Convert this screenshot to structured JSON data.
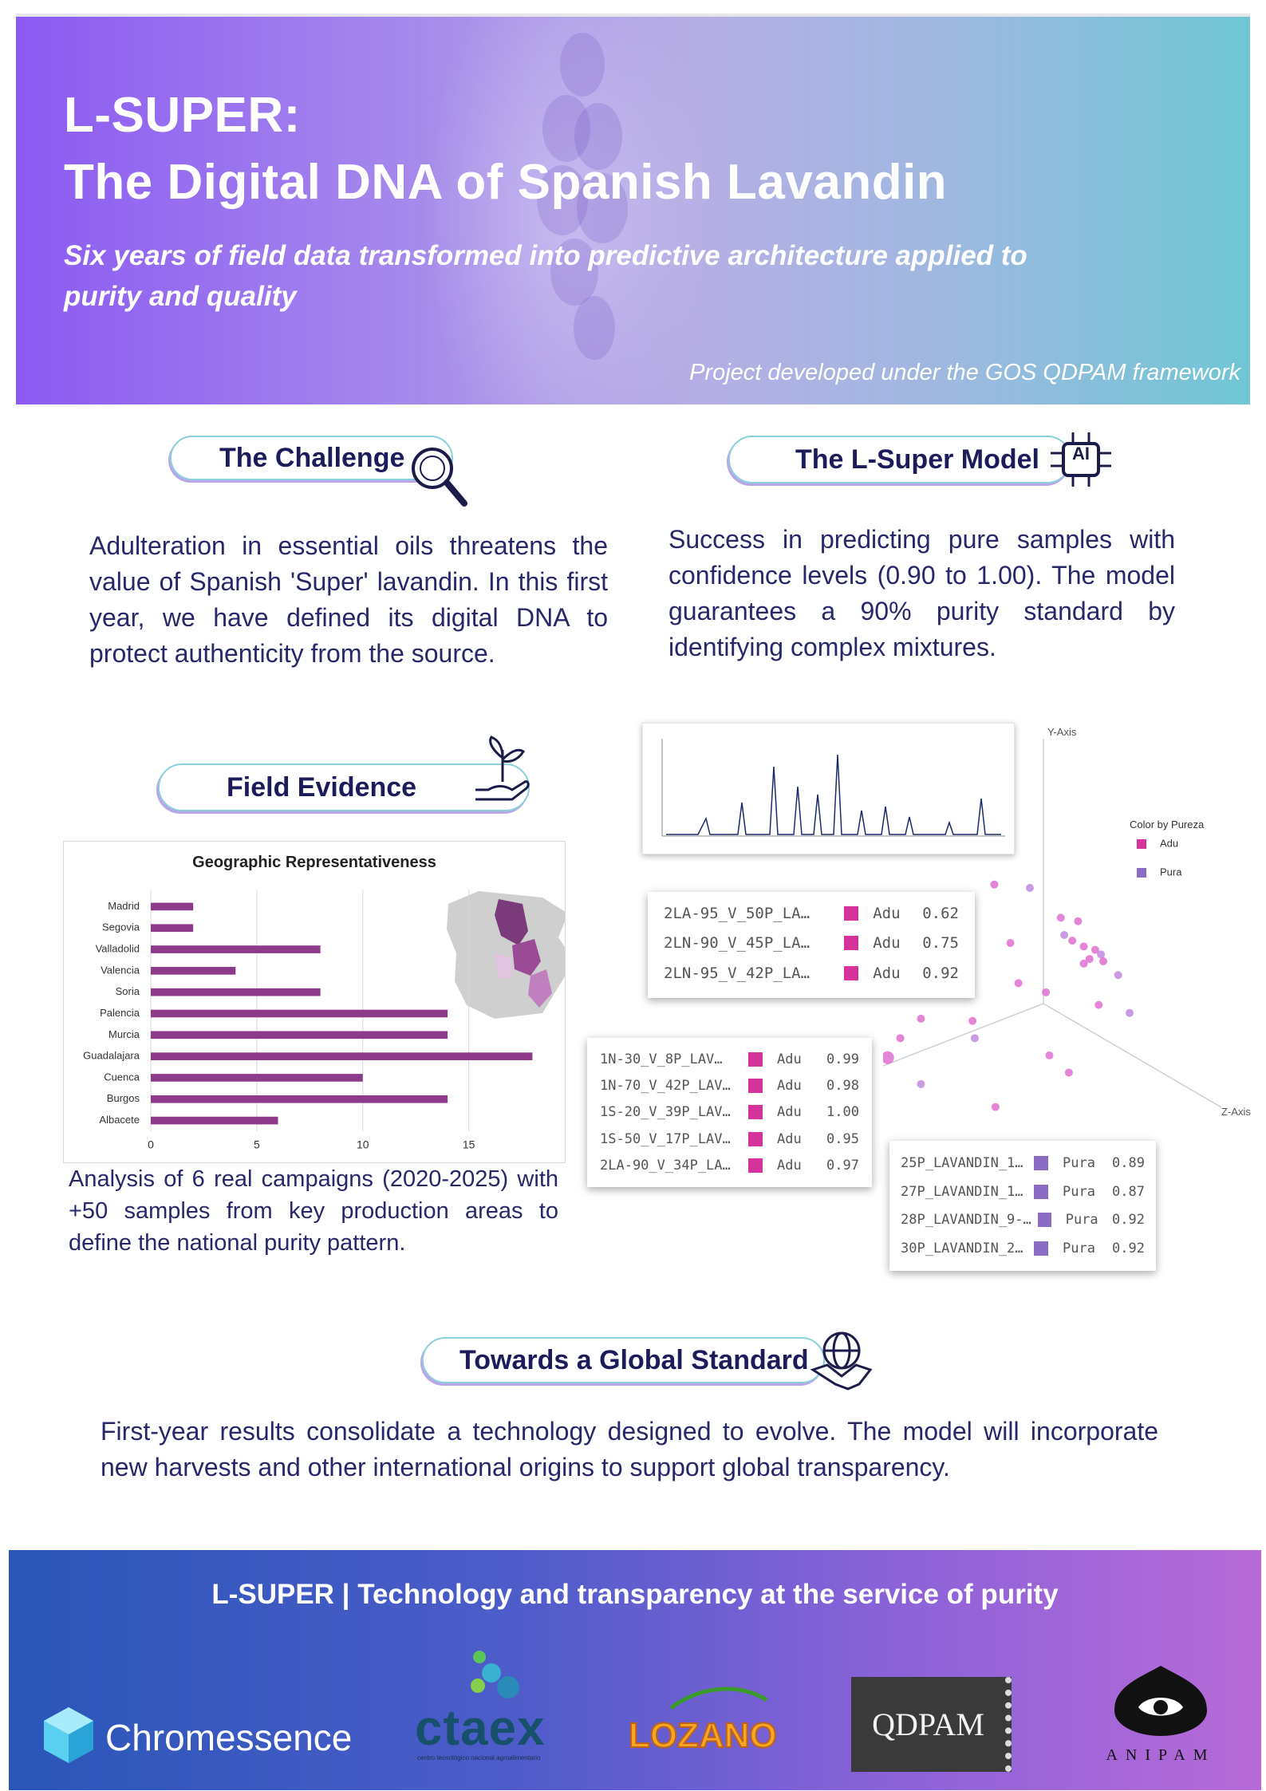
{
  "header": {
    "title_line1": "L-SUPER:",
    "title_line2": "The Digital DNA of Spanish Lavandin",
    "subtitle": "Six years of field data transformed into predictive architecture applied to purity and quality",
    "framework": "Project developed under the GOS QDPAM framework"
  },
  "challenge": {
    "heading": "The Challenge",
    "text": "Adulteration in essential oils threatens the value of Spanish 'Super' lavandin. In this first year, we have defined its digital DNA to protect authenticity from the source."
  },
  "model": {
    "heading": "The L-Super Model",
    "icon_label": "AI",
    "text": "Success in predicting pure samples with confidence levels (0.90 to 1.00). The model guarantees a 90% purity standard by identifying complex mixtures."
  },
  "field": {
    "heading": "Field Evidence",
    "text": "Analysis of 6 real campaigns (2020-2025) with +50 samples from key production areas to define the national purity pattern."
  },
  "chart_data": {
    "type": "bar",
    "orientation": "horizontal",
    "title": "Geographic Representativeness",
    "categories": [
      "Madrid",
      "Segovia",
      "Valladolid",
      "Valencia",
      "Soria",
      "Palencia",
      "Murcia",
      "Guadalajara",
      "Cuenca",
      "Burgos",
      "Albacete"
    ],
    "values": [
      2,
      2,
      8,
      4,
      8,
      14,
      14,
      18,
      10,
      14,
      6
    ],
    "color": "#8e3a8a",
    "xlim": [
      0,
      19
    ],
    "xticks": [
      0,
      5,
      10,
      15
    ],
    "grid": true
  },
  "prediction": {
    "axis_y": "Y-Axis",
    "axis_z": "Z-Axis",
    "legend_title": "Color by Pureza",
    "legend": [
      {
        "name": "Adu",
        "color": "#d6339a"
      },
      {
        "name": "Pura",
        "color": "#8a6cc4"
      }
    ],
    "tables": [
      {
        "rows": [
          [
            "2LA-95_V_50P_LA…",
            "Adu",
            "0.62"
          ],
          [
            "2LN-90_V_45P_LA…",
            "Adu",
            "0.75"
          ],
          [
            "2LN-95_V_42P_LA…",
            "Adu",
            "0.92"
          ]
        ]
      },
      {
        "rows": [
          [
            "1N-30_V_8P_LAV…",
            "Adu",
            "0.99"
          ],
          [
            "1N-70_V_42P_LAV…",
            "Adu",
            "0.98"
          ],
          [
            "1S-20_V_39P_LAV…",
            "Adu",
            "1.00"
          ],
          [
            "1S-50_V_17P_LAV…",
            "Adu",
            "0.95"
          ],
          [
            "2LA-90_V_34P_LA…",
            "Adu",
            "0.97"
          ]
        ]
      },
      {
        "rows": [
          [
            "25P_LAVANDIN_1…",
            "Pura",
            "0.89"
          ],
          [
            "27P_LAVANDIN_1…",
            "Pura",
            "0.87"
          ],
          [
            "28P_LAVANDIN_9-…",
            "Pura",
            "0.92"
          ],
          [
            "30P_LAVANDIN_2…",
            "Pura",
            "0.92"
          ]
        ]
      }
    ]
  },
  "standard": {
    "heading": "Towards a Global Standard",
    "text": "First-year results consolidate a technology designed to evolve. The model will incorporate new harvests and other international origins to support global transparency."
  },
  "footer": {
    "tagline": "L-SUPER | Technology and transparency at the service of purity",
    "logos": {
      "chromessence": "Chromessence",
      "ctaex": "ctaex",
      "ctaex_sub": "centro tecnológico nacional agroalimentario",
      "lozano": "LOZANO",
      "qdpam": "QDPAM",
      "anipam": "ANIPAM"
    }
  }
}
